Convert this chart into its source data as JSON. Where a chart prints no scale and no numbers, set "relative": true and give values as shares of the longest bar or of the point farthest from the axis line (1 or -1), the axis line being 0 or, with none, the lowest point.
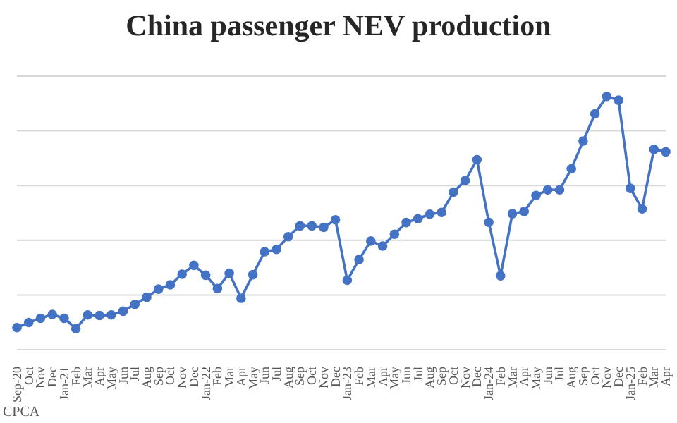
{
  "chart_data": {
    "type": "line",
    "title": "China passenger NEV production",
    "relative": true,
    "grid": "y",
    "marker": "circle",
    "line_style": "solid",
    "annotations": [
      "CPCA"
    ],
    "categories": [
      "Sep-20",
      "Oct",
      "Nov",
      "Dec",
      "Jan-21",
      "Feb",
      "Mar",
      "Apr",
      "May",
      "Jun",
      "Jul",
      "Aug",
      "Sep",
      "Oct",
      "Nov",
      "Dec",
      "Jan-22",
      "Feb",
      "Mar",
      "Apr",
      "May",
      "Jun",
      "Jul",
      "Aug",
      "Sep",
      "Oct",
      "Nov",
      "Dec",
      "Jan-23",
      "Feb",
      "Mar",
      "Apr",
      "May",
      "Jun",
      "Jul",
      "Aug",
      "Sep",
      "Oct",
      "Nov",
      "Dec",
      "Jan-24",
      "Feb",
      "Mar",
      "Apr",
      "May",
      "Jun",
      "Jul",
      "Aug",
      "Sep",
      "Oct",
      "Nov",
      "Dec",
      "Jan-25",
      "Feb",
      "Mar",
      "Apr"
    ],
    "series": [
      {
        "color": "#4472c4",
        "values": [
          0.087,
          0.107,
          0.124,
          0.139,
          0.124,
          0.083,
          0.137,
          0.135,
          0.137,
          0.152,
          0.179,
          0.207,
          0.239,
          0.256,
          0.298,
          0.333,
          0.294,
          0.241,
          0.302,
          0.203,
          0.296,
          0.387,
          0.396,
          0.446,
          0.489,
          0.489,
          0.483,
          0.513,
          0.274,
          0.356,
          0.429,
          0.409,
          0.456,
          0.502,
          0.517,
          0.535,
          0.542,
          0.622,
          0.668,
          0.75,
          0.503,
          0.292,
          0.537,
          0.546,
          0.609,
          0.631,
          0.631,
          0.714,
          0.824,
          0.931,
          1,
          0.985,
          0.637,
          0.556,
          0.791,
          0.781
        ]
      }
    ]
  }
}
